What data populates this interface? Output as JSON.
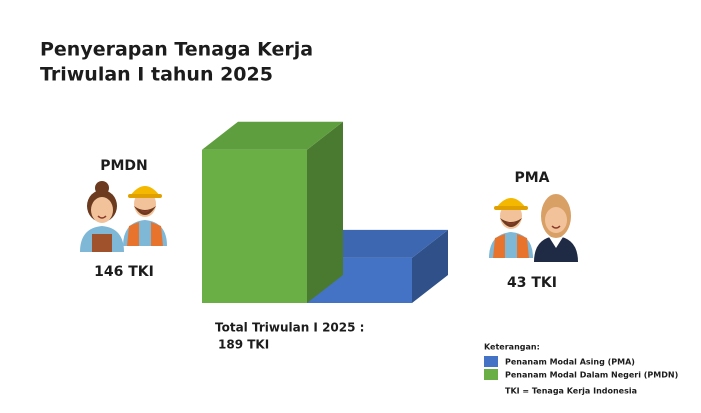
{
  "chart_data": {
    "type": "bar3d",
    "title": [
      "Penyerapan Tenaga Kerja",
      "Triwulan I tahun 2025"
    ],
    "series": [
      {
        "name": "Penanam Modal Asing (PMA)",
        "label": "PMA",
        "color": "#4472c4",
        "values": [
          43
        ],
        "value_labels": [
          "43 TKI"
        ]
      },
      {
        "name": "Penanam Modal Dalam Negeri (PMDN)",
        "label": "PMDN",
        "color": "#6aaf45",
        "values": [
          146
        ],
        "value_labels": [
          "146 TKI"
        ]
      }
    ],
    "total": {
      "label": "Total Triwulan I 2025 :",
      "value": 189,
      "value_label": "189 TKI"
    },
    "legend_title": "Keterangan:",
    "legend_note": "TKI = Tenaga Kerja Indonesia"
  }
}
